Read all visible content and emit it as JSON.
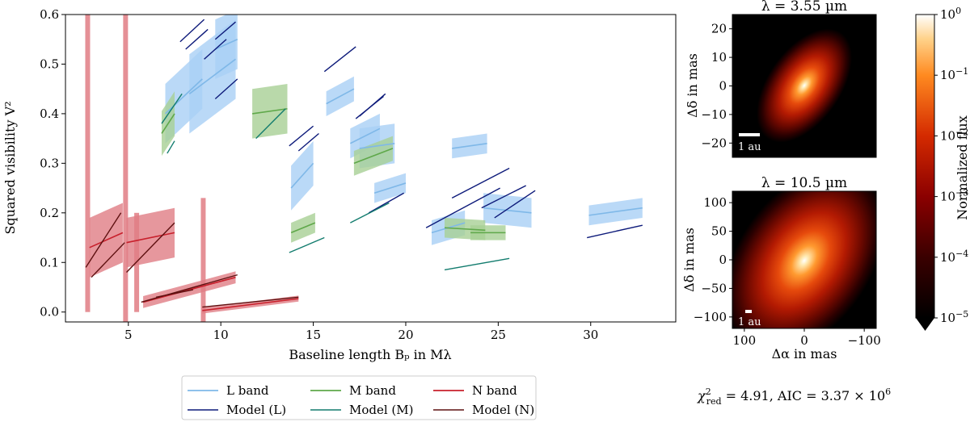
{
  "chart_data": [
    {
      "type": "line",
      "title": "",
      "xlabel": "Baseline length Bₚ in Mλ",
      "ylabel": "Squared visibility V²",
      "xlim": [
        1.6,
        34.6
      ],
      "ylim": [
        -0.02,
        0.6
      ],
      "xticks": [
        "5",
        "10",
        "15",
        "20",
        "25",
        "30"
      ],
      "yticks": [
        "0.0",
        "0.1",
        "0.2",
        "0.3",
        "0.4",
        "0.5",
        "0.6"
      ],
      "legend_position": "below",
      "colors": {
        "L": "#7fb8e8",
        "L_band": "#a9d0f5",
        "L_model": "#0d1a7a",
        "M": "#5fa84a",
        "M_band": "#a7cf95",
        "M_model": "#127c6e",
        "N": "#c8202c",
        "N_band": "#e07d84",
        "N_model": "#5e1010"
      },
      "legend": [
        {
          "key": "L",
          "label": "L band",
          "kind": "data"
        },
        {
          "key": "L_model",
          "label": "Model (L)",
          "kind": "model"
        },
        {
          "key": "M",
          "label": "M band",
          "kind": "data"
        },
        {
          "key": "M_model",
          "label": "Model (M)",
          "kind": "model"
        },
        {
          "key": "N",
          "label": "N band",
          "kind": "data"
        },
        {
          "key": "N_model",
          "label": "Model (N)",
          "kind": "model"
        }
      ],
      "series": [
        {
          "band": "L",
          "x": [
            7.0,
            9.0
          ],
          "y": [
            0.4,
            0.47
          ],
          "err": 0.06
        },
        {
          "band": "L",
          "x": [
            8.3,
            10.8
          ],
          "y": [
            0.44,
            0.51
          ],
          "err": 0.08
        },
        {
          "band": "L",
          "x": [
            9.7,
            10.9
          ],
          "y": [
            0.53,
            0.55
          ],
          "err": 0.06
        },
        {
          "band": "L",
          "x": [
            13.8,
            15.0
          ],
          "y": [
            0.25,
            0.3
          ],
          "err": 0.045
        },
        {
          "band": "L",
          "x": [
            15.7,
            17.2
          ],
          "y": [
            0.42,
            0.45
          ],
          "err": 0.025
        },
        {
          "band": "L",
          "x": [
            17.0,
            18.6
          ],
          "y": [
            0.34,
            0.37
          ],
          "err": 0.03
        },
        {
          "band": "L",
          "x": [
            17.5,
            19.4
          ],
          "y": [
            0.33,
            0.34
          ],
          "err": 0.04
        },
        {
          "band": "L",
          "x": [
            18.3,
            20.0
          ],
          "y": [
            0.24,
            0.26
          ],
          "err": 0.02
        },
        {
          "band": "L",
          "x": [
            21.4,
            23.2
          ],
          "y": [
            0.16,
            0.18
          ],
          "err": 0.025
        },
        {
          "band": "L",
          "x": [
            22.5,
            24.4
          ],
          "y": [
            0.33,
            0.34
          ],
          "err": 0.02
        },
        {
          "band": "L",
          "x": [
            24.2,
            26.8
          ],
          "y": [
            0.21,
            0.2
          ],
          "err": 0.03
        },
        {
          "band": "L",
          "x": [
            29.9,
            32.8
          ],
          "y": [
            0.195,
            0.21
          ],
          "err": 0.02
        },
        {
          "band": "M",
          "x": [
            6.8,
            7.5
          ],
          "y": [
            0.36,
            0.4
          ],
          "err": 0.045
        },
        {
          "band": "M",
          "x": [
            11.7,
            13.6
          ],
          "y": [
            0.4,
            0.41
          ],
          "err": 0.05
        },
        {
          "band": "M",
          "x": [
            13.8,
            15.1
          ],
          "y": [
            0.16,
            0.18
          ],
          "err": 0.02
        },
        {
          "band": "M",
          "x": [
            17.2,
            19.3
          ],
          "y": [
            0.3,
            0.33
          ],
          "err": 0.025
        },
        {
          "band": "M",
          "x": [
            22.1,
            24.3
          ],
          "y": [
            0.17,
            0.165
          ],
          "err": 0.02
        },
        {
          "band": "M",
          "x": [
            23.5,
            25.4
          ],
          "y": [
            0.16,
            0.16
          ],
          "err": 0.015
        },
        {
          "band": "N",
          "x": [
            2.9,
            4.7
          ],
          "y": [
            0.13,
            0.16
          ],
          "err": 0.06
        },
        {
          "band": "N",
          "x": [
            4.9,
            7.5
          ],
          "y": [
            0.14,
            0.16
          ],
          "err": 0.05
        },
        {
          "band": "N",
          "x": [
            5.8,
            10.8
          ],
          "y": [
            0.02,
            0.07
          ],
          "err": 0.012
        },
        {
          "band": "N",
          "x": [
            9.0,
            14.2
          ],
          "y": [
            0.003,
            0.027
          ],
          "err": 0.006
        },
        {
          "band": "L_model",
          "x": [
            7.8,
            9.1
          ],
          "y": [
            0.545,
            0.59
          ],
          "err": 0
        },
        {
          "band": "L_model",
          "x": [
            8.1,
            9.3
          ],
          "y": [
            0.53,
            0.57
          ],
          "err": 0
        },
        {
          "band": "L_model",
          "x": [
            9.1,
            10.3
          ],
          "y": [
            0.51,
            0.55
          ],
          "err": 0
        },
        {
          "band": "L_model",
          "x": [
            9.7,
            10.8
          ],
          "y": [
            0.55,
            0.585
          ],
          "err": 0
        },
        {
          "band": "L_model",
          "x": [
            9.7,
            10.9
          ],
          "y": [
            0.43,
            0.47
          ],
          "err": 0
        },
        {
          "band": "L_model",
          "x": [
            13.7,
            15.0
          ],
          "y": [
            0.335,
            0.375
          ],
          "err": 0
        },
        {
          "band": "L_model",
          "x": [
            14.2,
            15.3
          ],
          "y": [
            0.325,
            0.36
          ],
          "err": 0
        },
        {
          "band": "L_model",
          "x": [
            15.6,
            17.3
          ],
          "y": [
            0.485,
            0.535
          ],
          "err": 0
        },
        {
          "band": "L_model",
          "x": [
            17.3,
            18.8
          ],
          "y": [
            0.39,
            0.435
          ],
          "err": 0
        },
        {
          "band": "L_model",
          "x": [
            17.5,
            18.9
          ],
          "y": [
            0.395,
            0.44
          ],
          "err": 0
        },
        {
          "band": "L_model",
          "x": [
            18.0,
            19.9
          ],
          "y": [
            0.2,
            0.24
          ],
          "err": 0
        },
        {
          "band": "L_model",
          "x": [
            21.1,
            25.1
          ],
          "y": [
            0.17,
            0.25
          ],
          "err": 0
        },
        {
          "band": "L_model",
          "x": [
            22.5,
            25.6
          ],
          "y": [
            0.23,
            0.29
          ],
          "err": 0
        },
        {
          "band": "L_model",
          "x": [
            24.1,
            26.5
          ],
          "y": [
            0.21,
            0.255
          ],
          "err": 0
        },
        {
          "band": "L_model",
          "x": [
            24.8,
            27.0
          ],
          "y": [
            0.19,
            0.245
          ],
          "err": 0
        },
        {
          "band": "L_model",
          "x": [
            29.8,
            32.8
          ],
          "y": [
            0.15,
            0.175
          ],
          "err": 0
        },
        {
          "band": "M_model",
          "x": [
            6.8,
            7.9
          ],
          "y": [
            0.38,
            0.44
          ],
          "err": 0
        },
        {
          "band": "M_model",
          "x": [
            7.1,
            7.5
          ],
          "y": [
            0.32,
            0.345
          ],
          "err": 0
        },
        {
          "band": "M_model",
          "x": [
            11.9,
            13.5
          ],
          "y": [
            0.35,
            0.41
          ],
          "err": 0
        },
        {
          "band": "M_model",
          "x": [
            13.7,
            15.6
          ],
          "y": [
            0.12,
            0.15
          ],
          "err": 0
        },
        {
          "band": "M_model",
          "x": [
            17.0,
            19.1
          ],
          "y": [
            0.18,
            0.22
          ],
          "err": 0
        },
        {
          "band": "M_model",
          "x": [
            22.1,
            25.6
          ],
          "y": [
            0.085,
            0.108
          ],
          "err": 0
        },
        {
          "band": "N_model",
          "x": [
            2.7,
            4.6
          ],
          "y": [
            0.09,
            0.2
          ],
          "err": 0
        },
        {
          "band": "N_model",
          "x": [
            3.0,
            4.8
          ],
          "y": [
            0.07,
            0.14
          ],
          "err": 0
        },
        {
          "band": "N_model",
          "x": [
            4.9,
            7.5
          ],
          "y": [
            0.08,
            0.18
          ],
          "err": 0
        },
        {
          "band": "N_model",
          "x": [
            5.7,
            10.9
          ],
          "y": [
            0.02,
            0.075
          ],
          "err": 0
        },
        {
          "band": "N_model",
          "x": [
            6.5,
            8.5
          ],
          "y": [
            0.03,
            0.045
          ],
          "err": 0
        },
        {
          "band": "N_model",
          "x": [
            9.0,
            14.2
          ],
          "y": [
            0.01,
            0.03
          ],
          "err": 0
        }
      ],
      "n_band_spikes": [
        {
          "x": 2.8,
          "from": 0.0,
          "to": 0.6
        },
        {
          "x": 4.85,
          "from": -0.02,
          "to": 0.6
        },
        {
          "x": 5.45,
          "from": 0.0,
          "to": 0.2
        },
        {
          "x": 9.05,
          "from": -0.02,
          "to": 0.23
        }
      ]
    },
    {
      "type": "heatmap",
      "title": "λ = 3.55 µm",
      "xlabel": "",
      "ylabel": "Δδ in mas",
      "xlim": [
        25,
        -25
      ],
      "ylim": [
        -25,
        25
      ],
      "yticks": [
        "20",
        "10",
        "0",
        "−10",
        "−20"
      ],
      "xticks": [],
      "scalebar_label": "1 au",
      "ellipse": {
        "fwhm_major_mas": 8,
        "fwhm_minor_mas": 5,
        "position_angle_deg": 35
      }
    },
    {
      "type": "heatmap",
      "title": "λ = 10.5 µm",
      "xlabel": "Δα in mas",
      "ylabel": "Δδ in mas",
      "xlim": [
        120,
        -120
      ],
      "ylim": [
        -120,
        120
      ],
      "yticks": [
        "100",
        "50",
        "0",
        "−50",
        "−100"
      ],
      "xticks": [
        "100",
        "0",
        "−100"
      ],
      "scalebar_label": "1 au",
      "ellipse": {
        "fwhm_major_mas": 40,
        "fwhm_minor_mas": 28,
        "position_angle_deg": 35
      }
    },
    {
      "type": "colorbar",
      "label": "Normalized flux",
      "scale": "log",
      "range": [
        1e-05,
        1
      ],
      "tick_mantissa": "10",
      "tick_exponents": [
        "0",
        "−1",
        "−2",
        "−3",
        "−4",
        "−5"
      ]
    }
  ],
  "fit_stats": {
    "chi2_symbol": "χ",
    "chi2_sub": "red",
    "chi2_sup": "2",
    "chi2_value": " = 4.91,  AIC = 3.37 × 10",
    "aic_exponent": "6"
  }
}
